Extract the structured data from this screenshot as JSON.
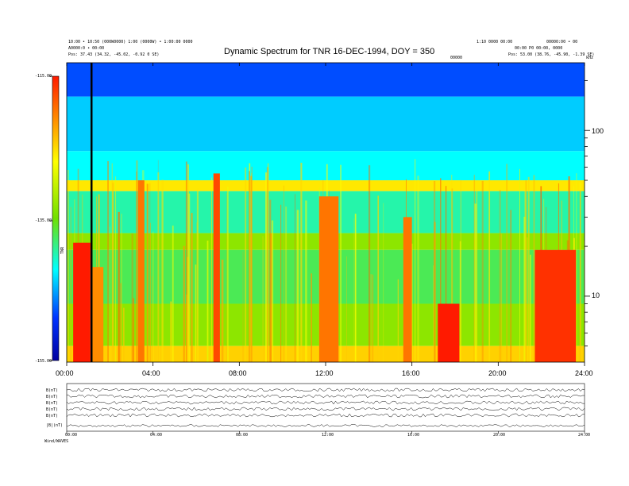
{
  "header": {
    "left_lines": [
      "10:00 • 10:50 (000W0000) 1:00 (0000W) • 1:00:00 0000",
      "A0000:0 • 00:00",
      "Pos: 37.43 (34.32, -45.02, -0.92 0 SE)"
    ],
    "right_lines": [
      "1:10 0000 00:00",
      "00000:00 • 00",
      "00:00 P0 00:00, 0000",
      "Pos: 53.00 (38.76, -45.90, -1.39 SE)"
    ],
    "small_mid_label": "00000",
    "corner_label": "kHz"
  },
  "title": "Dynamic Spectrum for TNR 16-DEC-1994, DOY = 350",
  "colorbar": {
    "tick_labels": [
      "-115.00",
      "-135.00",
      "-155.00"
    ],
    "side_label": "TNR"
  },
  "time_axis": {
    "ticks": [
      "00:00",
      "04:00",
      "08:00",
      "12:00",
      "16:00",
      "20:00",
      "24:00"
    ]
  },
  "freq_axis": {
    "ticks": [
      "100",
      "10"
    ]
  },
  "panels": {
    "labels": [
      "B(nT)",
      "B(nT)",
      "B(nT)",
      "B(nT)",
      "B(nT)",
      "|B|(nT)"
    ],
    "bottom_ticks": [
      "00:00",
      "04:00",
      "08:00",
      "12:00",
      "16:00",
      "20:00",
      "24:00"
    ],
    "footer": "Wind/WAVES"
  },
  "colors": {
    "red": "#ff1a00",
    "orange": "#ff8c00",
    "yellow": "#ffff00",
    "green": "#70e000",
    "cyan": "#00ffff",
    "blue": "#0033ff",
    "darkblue": "#0000a0"
  },
  "chart_data": {
    "type": "heatmap",
    "title": "Dynamic Spectrum for TNR 16-DEC-1994, DOY = 350",
    "x_unit": "hours UT",
    "x_range": [
      0,
      24
    ],
    "x_ticks": [
      "00:00",
      "04:00",
      "08:00",
      "12:00",
      "16:00",
      "20:00",
      "24:00"
    ],
    "y_unit": "kHz",
    "y_scale": "log",
    "y_range": [
      4,
      256
    ],
    "y_ticks": [
      100,
      10
    ],
    "color_range": [
      -155.0,
      -115.0
    ],
    "bands": [
      {
        "from_khz": 160,
        "to_khz": 256,
        "level": -145
      },
      {
        "from_khz": 75,
        "to_khz": 160,
        "level": -140
      },
      {
        "from_khz": 50,
        "to_khz": 75,
        "level": -138
      },
      {
        "from_khz": 43,
        "to_khz": 50,
        "level": -126
      },
      {
        "from_khz": 24,
        "to_khz": 43,
        "level": -136
      },
      {
        "from_khz": 19,
        "to_khz": 24,
        "level": -131
      },
      {
        "from_khz": 9,
        "to_khz": 19,
        "level": -134
      },
      {
        "from_khz": 5,
        "to_khz": 9,
        "level": -131
      },
      {
        "from_khz": 4,
        "to_khz": 5,
        "level": -125
      }
    ],
    "bursts": [
      {
        "t0": 0.3,
        "t1": 1.1,
        "from_khz": 4,
        "to_khz": 21,
        "level": -117
      },
      {
        "t0": 1.1,
        "t1": 1.7,
        "from_khz": 4,
        "to_khz": 15,
        "level": -122
      },
      {
        "t0": 3.3,
        "t1": 3.6,
        "from_khz": 4,
        "to_khz": 50,
        "level": -121
      },
      {
        "t0": 6.8,
        "t1": 7.1,
        "from_khz": 4,
        "to_khz": 55,
        "level": -119
      },
      {
        "t0": 11.7,
        "t1": 12.6,
        "from_khz": 4,
        "to_khz": 40,
        "level": -121
      },
      {
        "t0": 15.6,
        "t1": 16.0,
        "from_khz": 4,
        "to_khz": 30,
        "level": -121
      },
      {
        "t0": 17.2,
        "t1": 18.2,
        "from_khz": 4,
        "to_khz": 9,
        "level": -117
      },
      {
        "t0": 21.7,
        "t1": 23.6,
        "from_khz": 4,
        "to_khz": 19,
        "level": -118
      }
    ],
    "marker_hour": 1.15
  }
}
